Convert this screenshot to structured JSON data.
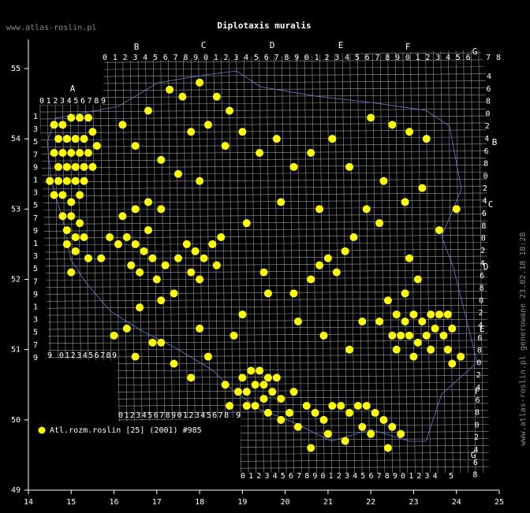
{
  "chart_data": {
    "type": "scatter",
    "title": "Diplotaxis muralis",
    "site": "www.atlas-roslin.pl",
    "footer": "www.atlas-roslin.pl generowane 23.02.18 18:28",
    "xlim": [
      14,
      25
    ],
    "ylim": [
      49,
      55.5
    ],
    "xticks": [
      14,
      15,
      16,
      17,
      18,
      19,
      20,
      21,
      22,
      23,
      24,
      25
    ],
    "yticks": [
      49,
      50,
      51,
      52,
      53,
      54,
      55
    ],
    "grid": true,
    "grid_labels": {
      "letters_top": [
        "A",
        "B",
        "C",
        "D",
        "E",
        "F",
        "G"
      ],
      "letters_right": [
        "B",
        "C",
        "D",
        "E",
        "F",
        "G"
      ],
      "row_top": "0123456789012345678901234567890123456 78",
      "row_a": "0123456789",
      "row_left_bottom": "9 0123456789",
      "row_bottom_a": "0123456789012345678 9",
      "row_bottom_b": "0123456789012345678901234 5",
      "left_digits": [
        "1",
        "3",
        "5",
        "7",
        "9",
        "1",
        "3",
        "5",
        "7",
        "9",
        "1",
        "3",
        "5",
        "7",
        "9",
        "1",
        "3",
        "5",
        "7",
        "9"
      ],
      "right_digits": [
        "4",
        "6",
        "8",
        "0",
        "2",
        "4",
        "6",
        "8",
        "0",
        "2",
        "4",
        "6",
        "8",
        "0",
        "2",
        "4",
        "6",
        "8",
        "0",
        "2",
        "4",
        "6",
        "8",
        "0",
        "2",
        "4",
        "6",
        "8",
        "0",
        "2",
        "4",
        "6",
        "8"
      ]
    },
    "series": [
      {
        "name": "Atl.rozm.roslin [25] (2001) #985",
        "color": "#ffff00",
        "points": [
          [
            14.6,
            54.2
          ],
          [
            14.8,
            54.2
          ],
          [
            15.0,
            54.3
          ],
          [
            15.2,
            54.3
          ],
          [
            15.4,
            54.3
          ],
          [
            14.7,
            54.0
          ],
          [
            14.9,
            54.0
          ],
          [
            15.1,
            54.0
          ],
          [
            15.3,
            54.0
          ],
          [
            15.5,
            54.1
          ],
          [
            14.6,
            53.8
          ],
          [
            14.8,
            53.8
          ],
          [
            15.0,
            53.8
          ],
          [
            15.2,
            53.8
          ],
          [
            15.4,
            53.8
          ],
          [
            15.6,
            53.9
          ],
          [
            14.7,
            53.6
          ],
          [
            14.9,
            53.6
          ],
          [
            15.1,
            53.6
          ],
          [
            15.3,
            53.6
          ],
          [
            15.5,
            53.6
          ],
          [
            14.5,
            53.4
          ],
          [
            14.7,
            53.4
          ],
          [
            14.9,
            53.4
          ],
          [
            15.1,
            53.4
          ],
          [
            15.3,
            53.4
          ],
          [
            14.6,
            53.2
          ],
          [
            14.8,
            53.2
          ],
          [
            15.0,
            53.1
          ],
          [
            15.2,
            53.2
          ],
          [
            14.8,
            52.9
          ],
          [
            15.0,
            52.9
          ],
          [
            15.2,
            52.8
          ],
          [
            14.9,
            52.7
          ],
          [
            15.1,
            52.6
          ],
          [
            15.3,
            52.6
          ],
          [
            14.9,
            52.5
          ],
          [
            15.1,
            52.4
          ],
          [
            15.4,
            52.3
          ],
          [
            15.7,
            52.3
          ],
          [
            15.0,
            52.1
          ],
          [
            15.9,
            52.6
          ],
          [
            16.1,
            52.5
          ],
          [
            16.3,
            52.6
          ],
          [
            16.5,
            52.5
          ],
          [
            16.7,
            52.4
          ],
          [
            16.9,
            52.3
          ],
          [
            16.4,
            52.2
          ],
          [
            16.6,
            52.1
          ],
          [
            17.0,
            52.0
          ],
          [
            17.2,
            52.2
          ],
          [
            16.8,
            52.7
          ],
          [
            16.2,
            52.9
          ],
          [
            16.5,
            53.0
          ],
          [
            16.8,
            53.1
          ],
          [
            17.1,
            53.0
          ],
          [
            17.5,
            52.3
          ],
          [
            17.7,
            52.5
          ],
          [
            17.9,
            52.4
          ],
          [
            18.1,
            52.3
          ],
          [
            18.3,
            52.5
          ],
          [
            18.5,
            52.6
          ],
          [
            17.8,
            52.1
          ],
          [
            18.0,
            52.0
          ],
          [
            18.4,
            52.2
          ],
          [
            17.4,
            51.8
          ],
          [
            17.1,
            51.7
          ],
          [
            16.6,
            51.6
          ],
          [
            16.0,
            51.2
          ],
          [
            16.3,
            51.3
          ],
          [
            16.9,
            51.1
          ],
          [
            17.1,
            51.1
          ],
          [
            16.5,
            50.9
          ],
          [
            17.4,
            50.8
          ],
          [
            17.8,
            50.6
          ],
          [
            18.2,
            50.9
          ],
          [
            18.0,
            51.3
          ],
          [
            18.9,
            50.4
          ],
          [
            19.1,
            50.4
          ],
          [
            19.3,
            50.5
          ],
          [
            19.5,
            50.5
          ],
          [
            19.7,
            50.4
          ],
          [
            19.9,
            50.3
          ],
          [
            19.0,
            50.6
          ],
          [
            19.2,
            50.7
          ],
          [
            19.4,
            50.7
          ],
          [
            19.6,
            50.6
          ],
          [
            19.8,
            50.6
          ],
          [
            19.1,
            50.2
          ],
          [
            19.3,
            50.2
          ],
          [
            19.6,
            50.1
          ],
          [
            19.9,
            50.0
          ],
          [
            20.1,
            50.1
          ],
          [
            19.5,
            50.3
          ],
          [
            20.2,
            50.4
          ],
          [
            18.7,
            50.2
          ],
          [
            18.6,
            50.5
          ],
          [
            20.5,
            50.2
          ],
          [
            20.7,
            50.1
          ],
          [
            20.9,
            50.0
          ],
          [
            21.1,
            50.2
          ],
          [
            21.3,
            50.2
          ],
          [
            21.5,
            50.1
          ],
          [
            21.7,
            50.2
          ],
          [
            21.9,
            50.2
          ],
          [
            22.1,
            50.1
          ],
          [
            22.3,
            50.0
          ],
          [
            22.5,
            49.9
          ],
          [
            22.7,
            49.8
          ],
          [
            21.0,
            49.8
          ],
          [
            21.4,
            49.7
          ],
          [
            22.0,
            49.8
          ],
          [
            20.3,
            49.9
          ],
          [
            20.6,
            49.6
          ],
          [
            22.4,
            49.6
          ],
          [
            21.8,
            49.9
          ],
          [
            22.6,
            51.5
          ],
          [
            22.8,
            51.4
          ],
          [
            23.0,
            51.5
          ],
          [
            23.2,
            51.4
          ],
          [
            23.4,
            51.5
          ],
          [
            23.6,
            51.5
          ],
          [
            23.8,
            51.5
          ],
          [
            22.5,
            51.2
          ],
          [
            22.7,
            51.2
          ],
          [
            22.9,
            51.2
          ],
          [
            23.1,
            51.1
          ],
          [
            23.3,
            51.2
          ],
          [
            23.5,
            51.3
          ],
          [
            23.7,
            51.2
          ],
          [
            23.9,
            51.3
          ],
          [
            22.6,
            51.0
          ],
          [
            23.0,
            50.9
          ],
          [
            23.4,
            51.0
          ],
          [
            23.8,
            51.0
          ],
          [
            23.9,
            50.8
          ],
          [
            24.1,
            50.9
          ],
          [
            22.4,
            51.7
          ],
          [
            22.8,
            51.8
          ],
          [
            23.1,
            52.0
          ],
          [
            22.2,
            51.4
          ],
          [
            20.8,
            52.2
          ],
          [
            21.0,
            52.3
          ],
          [
            21.2,
            52.1
          ],
          [
            21.4,
            52.4
          ],
          [
            20.6,
            52.0
          ],
          [
            21.6,
            52.6
          ],
          [
            20.2,
            51.8
          ],
          [
            19.6,
            51.8
          ],
          [
            19.5,
            52.1
          ],
          [
            20.3,
            51.4
          ],
          [
            20.9,
            51.2
          ],
          [
            21.5,
            51.0
          ],
          [
            21.8,
            51.4
          ],
          [
            19.0,
            51.5
          ],
          [
            18.8,
            51.2
          ],
          [
            17.3,
            54.7
          ],
          [
            17.6,
            54.6
          ],
          [
            18.0,
            54.8
          ],
          [
            18.4,
            54.6
          ],
          [
            18.7,
            54.4
          ],
          [
            18.2,
            54.2
          ],
          [
            17.8,
            54.1
          ],
          [
            16.8,
            54.4
          ],
          [
            16.2,
            54.2
          ],
          [
            16.5,
            53.9
          ],
          [
            17.1,
            53.7
          ],
          [
            17.5,
            53.5
          ],
          [
            18.0,
            53.4
          ],
          [
            18.6,
            53.9
          ],
          [
            19.0,
            54.1
          ],
          [
            19.4,
            53.8
          ],
          [
            19.8,
            54.0
          ],
          [
            20.2,
            53.6
          ],
          [
            20.6,
            53.8
          ],
          [
            21.1,
            54.0
          ],
          [
            21.5,
            53.6
          ],
          [
            22.0,
            54.3
          ],
          [
            22.5,
            54.2
          ],
          [
            22.9,
            54.1
          ],
          [
            23.3,
            54.0
          ],
          [
            22.3,
            53.4
          ],
          [
            22.8,
            53.1
          ],
          [
            23.2,
            53.3
          ],
          [
            24.0,
            53.0
          ],
          [
            23.6,
            52.7
          ],
          [
            22.9,
            52.3
          ],
          [
            22.2,
            52.8
          ],
          [
            21.9,
            53.0
          ],
          [
            20.8,
            53.0
          ],
          [
            19.9,
            53.1
          ],
          [
            19.1,
            52.8
          ]
        ]
      }
    ]
  }
}
